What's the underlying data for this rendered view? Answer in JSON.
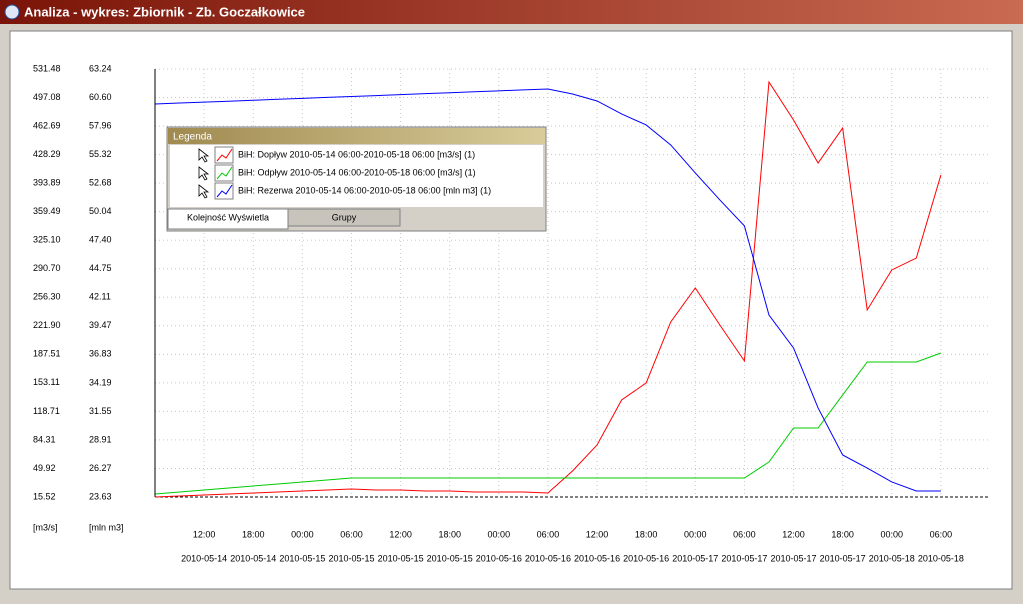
{
  "window": {
    "title": "Analiza - wykres: Zbiornik - Zb. Goczałkowice"
  },
  "chart_data": {
    "type": "line",
    "y_unit": "[m3/s]",
    "y2_unit": "[mln m3]",
    "legend": {
      "title": "Legenda",
      "tabs": [
        "Kolejność Wyświetla",
        "Grupy"
      ],
      "position": "upper left"
    },
    "grid": true,
    "xlim": [
      "2010-05-14 06:00",
      "2010-05-18 12:00"
    ],
    "xticks": [
      {
        "value": "2010-05-14 12:00",
        "time": "12:00",
        "date": "2010-05-14"
      },
      {
        "value": "2010-05-14 18:00",
        "time": "18:00",
        "date": "2010-05-14"
      },
      {
        "value": "2010-05-15 00:00",
        "time": "00:00",
        "date": "2010-05-15"
      },
      {
        "value": "2010-05-15 06:00",
        "time": "06:00",
        "date": "2010-05-15"
      },
      {
        "value": "2010-05-15 12:00",
        "time": "12:00",
        "date": "2010-05-15"
      },
      {
        "value": "2010-05-15 18:00",
        "time": "18:00",
        "date": "2010-05-15"
      },
      {
        "value": "2010-05-16 00:00",
        "time": "00:00",
        "date": "2010-05-16"
      },
      {
        "value": "2010-05-16 06:00",
        "time": "06:00",
        "date": "2010-05-16"
      },
      {
        "value": "2010-05-16 12:00",
        "time": "12:00",
        "date": "2010-05-16"
      },
      {
        "value": "2010-05-16 18:00",
        "time": "18:00",
        "date": "2010-05-16"
      },
      {
        "value": "2010-05-17 00:00",
        "time": "00:00",
        "date": "2010-05-17"
      },
      {
        "value": "2010-05-17 06:00",
        "time": "06:00",
        "date": "2010-05-17"
      },
      {
        "value": "2010-05-17 12:00",
        "time": "12:00",
        "date": "2010-05-17"
      },
      {
        "value": "2010-05-17 18:00",
        "time": "18:00",
        "date": "2010-05-17"
      },
      {
        "value": "2010-05-18 00:00",
        "time": "00:00",
        "date": "2010-05-18"
      },
      {
        "value": "2010-05-18 06:00",
        "time": "06:00",
        "date": "2010-05-18"
      }
    ],
    "ylim": [
      15.52,
      531.48
    ],
    "yticks": [
      15.52,
      49.92,
      84.31,
      118.71,
      153.11,
      187.51,
      {
        "value": 221.9,
        "label": "221.90"
      },
      {
        "value": 256.3,
        "label": "256.30"
      },
      {
        "value": 290.7,
        "label": "290.70"
      },
      {
        "value": 325.1,
        "label": "325.10"
      },
      359.49,
      393.89,
      428.29,
      462.69,
      497.08,
      531.48
    ],
    "y2lim": [
      23.63,
      63.24
    ],
    "y2ticks": [
      23.63,
      26.27,
      28.91,
      31.55,
      34.19,
      36.83,
      39.47,
      42.11,
      44.75,
      {
        "value": 47.4,
        "label": "47.40"
      },
      50.04,
      52.68,
      55.32,
      57.96,
      {
        "value": 60.6,
        "label": "60.60"
      },
      63.24
    ],
    "x": [
      "2010-05-14 06:00",
      "2010-05-14 09:00",
      "2010-05-14 12:00",
      "2010-05-14 15:00",
      "2010-05-14 18:00",
      "2010-05-14 21:00",
      "2010-05-15 00:00",
      "2010-05-15 03:00",
      "2010-05-15 06:00",
      "2010-05-15 09:00",
      "2010-05-15 12:00",
      "2010-05-15 15:00",
      "2010-05-15 18:00",
      "2010-05-15 21:00",
      "2010-05-16 00:00",
      "2010-05-16 03:00",
      "2010-05-16 06:00",
      "2010-05-16 09:00",
      "2010-05-16 12:00",
      "2010-05-16 15:00",
      "2010-05-16 18:00",
      "2010-05-16 21:00",
      "2010-05-17 00:00",
      "2010-05-17 03:00",
      "2010-05-17 06:00",
      "2010-05-17 09:00",
      "2010-05-17 12:00",
      "2010-05-17 15:00",
      "2010-05-17 18:00",
      "2010-05-17 21:00",
      "2010-05-18 00:00",
      "2010-05-18 03:00",
      "2010-05-18 06:00"
    ],
    "series": [
      {
        "name": "BiH: Dopływ 2010-05-14 06:00-2010-05-18 06:00 [m3/s] (1)",
        "color": "#ff0000",
        "axis": "y",
        "values": [
          15.5,
          16.7,
          17.9,
          19.1,
          20.3,
          21.6,
          22.8,
          24.0,
          25.2,
          24.0,
          24.0,
          22.8,
          22.8,
          21.6,
          21.6,
          21.6,
          20.3,
          46.9,
          78.2,
          132.5,
          153.0,
          226.5,
          267.5,
          222.9,
          179.5,
          515.8,
          470.0,
          418.1,
          460.3,
          241.0,
          289.2,
          303.6,
          403.7
        ]
      },
      {
        "name": "BiH: Odpływ 2010-05-14 06:00-2010-05-18 06:00 [m3/s] (1)",
        "color": "#00cc00",
        "axis": "y",
        "values": [
          19.1,
          21.6,
          24.0,
          26.4,
          28.8,
          31.2,
          33.6,
          36.0,
          38.4,
          38.4,
          38.4,
          38.4,
          38.4,
          38.4,
          38.4,
          38.4,
          38.4,
          38.4,
          38.4,
          38.4,
          38.4,
          38.4,
          38.4,
          38.4,
          38.4,
          57.7,
          98.7,
          98.7,
          138.5,
          178.3,
          178.3,
          178.3,
          189.1
        ]
      },
      {
        "name": "BiH: Rezerwa 2010-05-14 06:00-2010-05-18 06:00 [mln m3] (1)",
        "color": "#0000ff",
        "axis": "y2",
        "values": [
          60.0,
          60.09,
          60.18,
          60.26,
          60.35,
          60.44,
          60.52,
          60.61,
          60.7,
          60.78,
          60.87,
          60.96,
          61.04,
          61.13,
          61.22,
          61.31,
          61.39,
          60.93,
          60.28,
          59.08,
          58.06,
          56.21,
          53.62,
          51.12,
          48.72,
          40.47,
          37.42,
          31.87,
          27.52,
          26.31,
          25.02,
          24.19,
          24.19
        ]
      }
    ]
  }
}
